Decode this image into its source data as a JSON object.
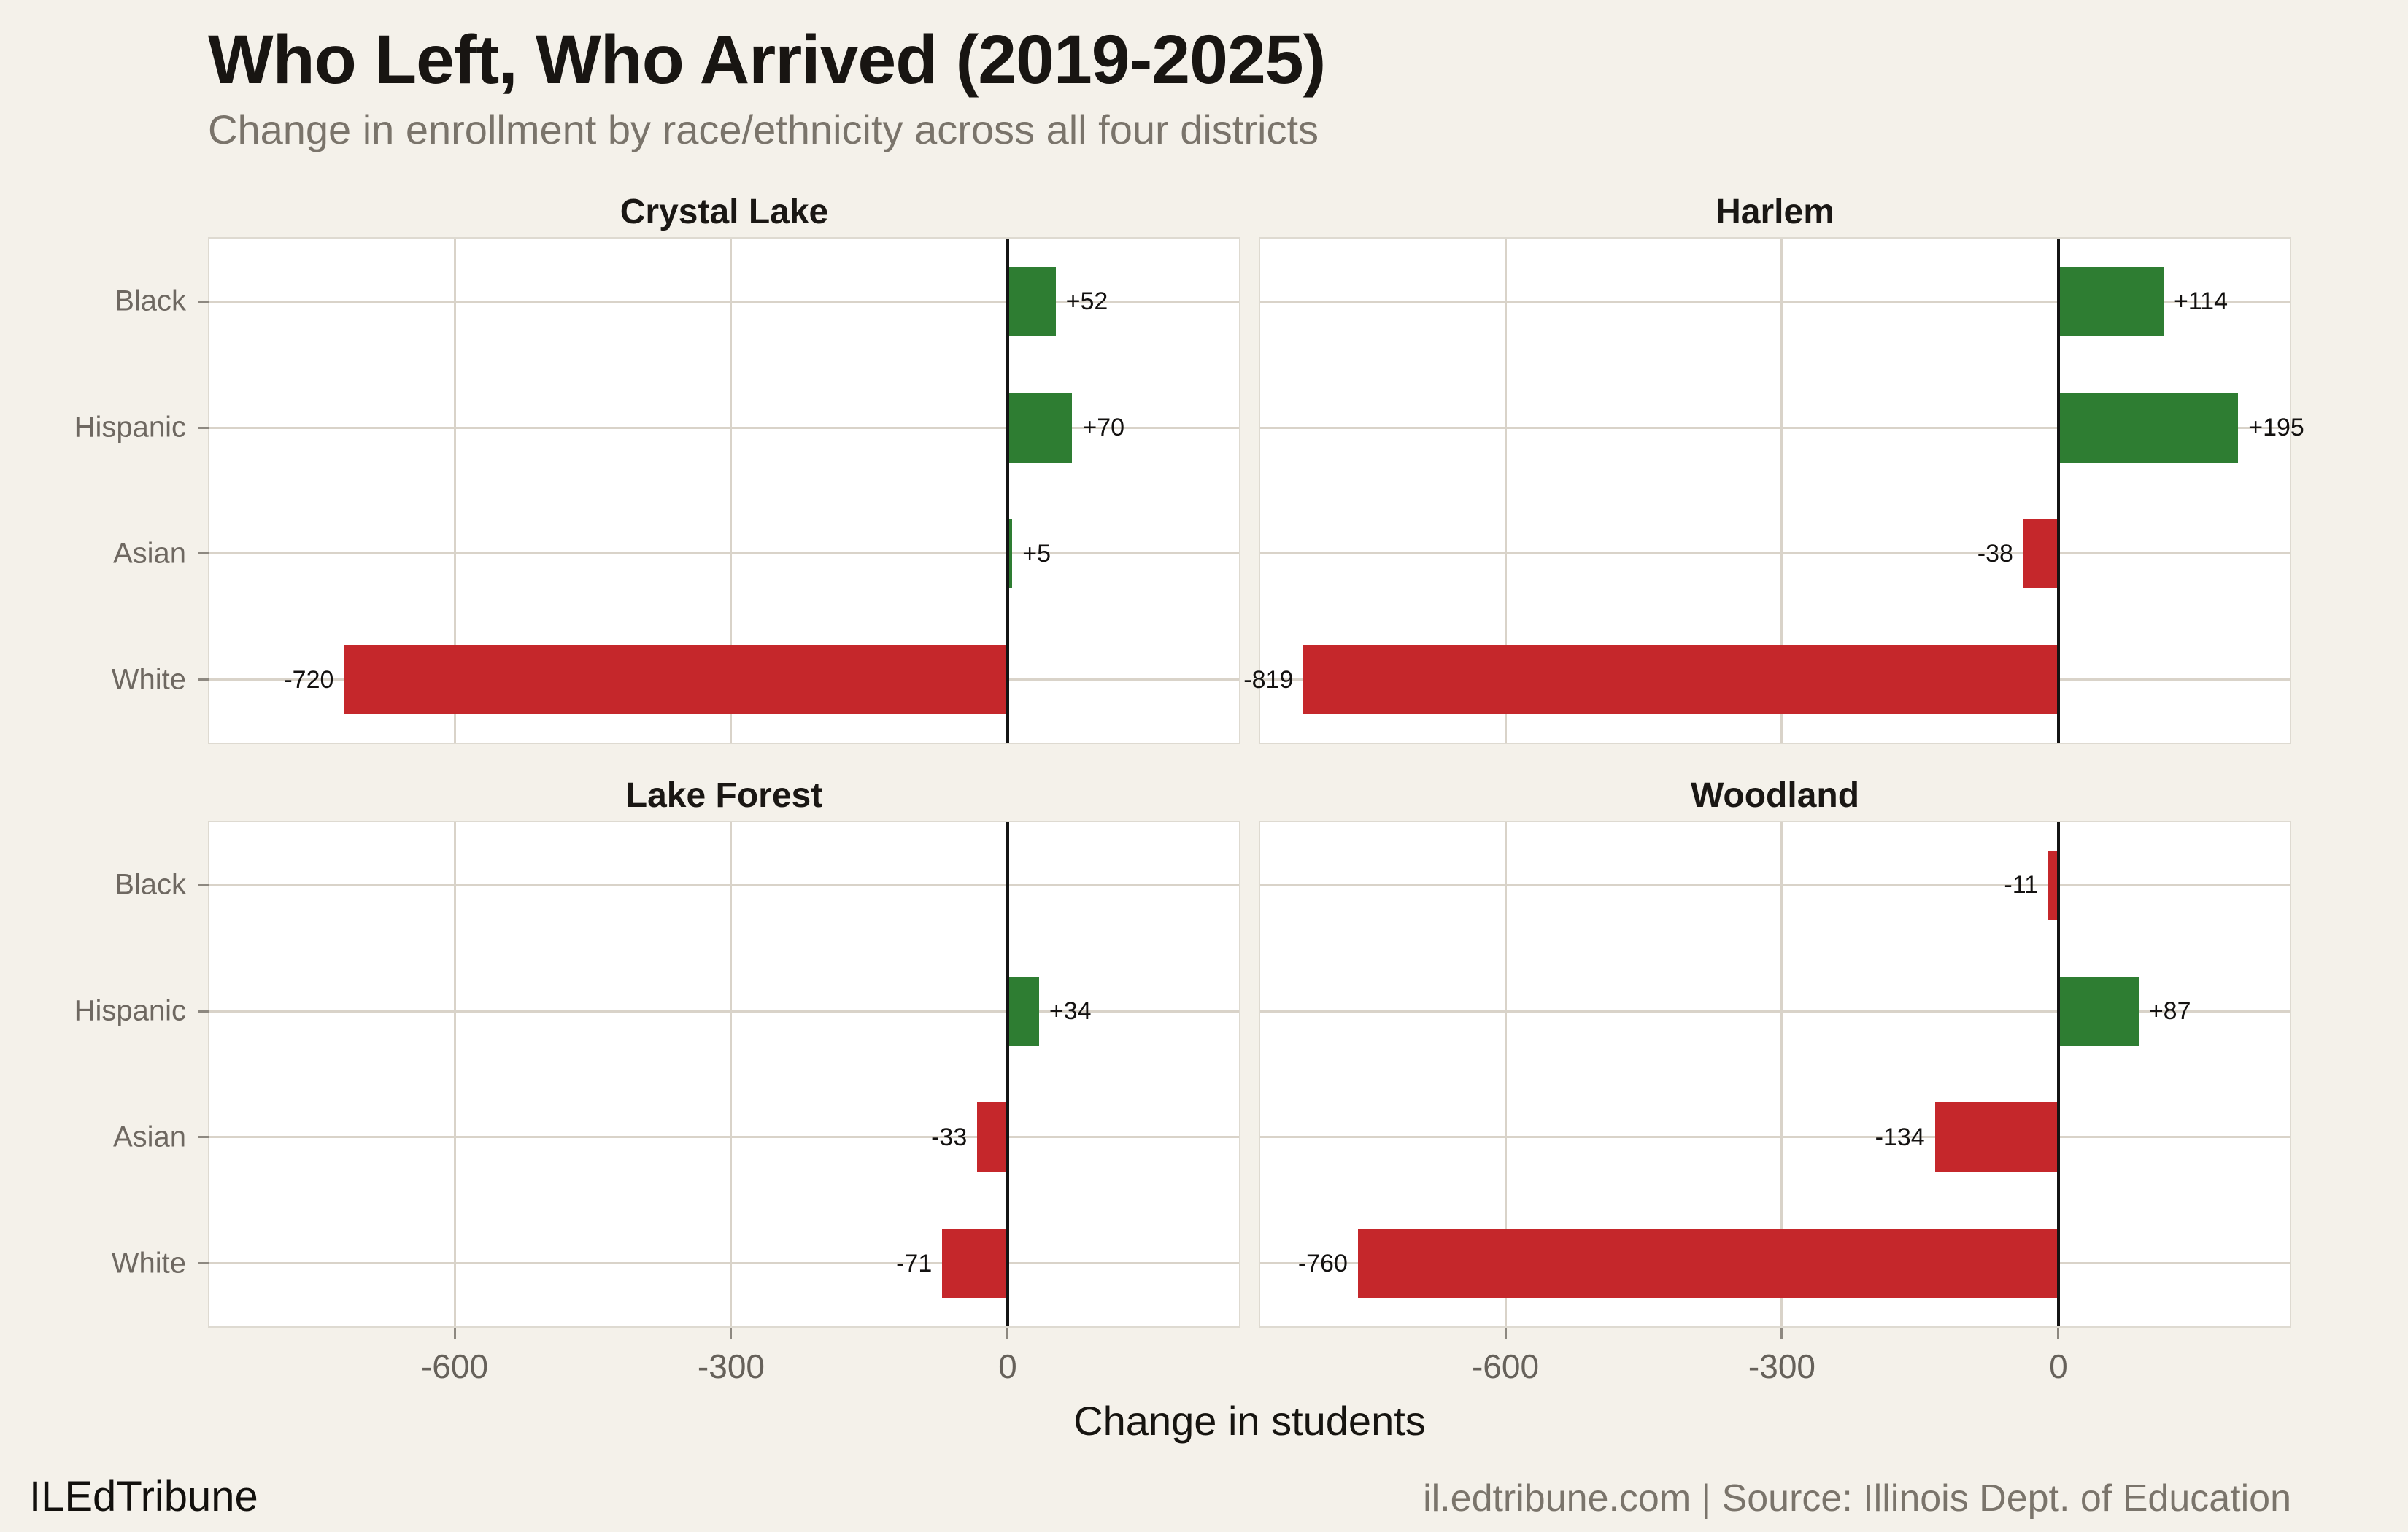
{
  "header": {
    "title": "Who Left, Who Arrived (2019-2025)",
    "subtitle": "Change in enrollment by race/ethnicity across all four districts"
  },
  "footer": {
    "brand": "ILEdTribune",
    "source": "il.edtribune.com | Source: Illinois Dept. of Education"
  },
  "chart_data": {
    "type": "bar",
    "orientation": "horizontal",
    "title": "Who Left, Who Arrived (2019-2025)",
    "subtitle": "Change in enrollment by race/ethnicity across all four districts",
    "categories": [
      "Black",
      "Hispanic",
      "Asian",
      "White"
    ],
    "facets": [
      {
        "title": "Crystal Lake",
        "values": [
          52,
          70,
          5,
          -720
        ],
        "labels": [
          "+52",
          "+70",
          "+5",
          "-720"
        ]
      },
      {
        "title": "Harlem",
        "values": [
          114,
          195,
          -38,
          -819
        ],
        "labels": [
          "+114",
          "+195",
          "-38",
          "-819"
        ]
      },
      {
        "title": "Lake Forest",
        "values": [
          0,
          34,
          -33,
          -71
        ],
        "labels": [
          null,
          "+34",
          "-33",
          "-71"
        ]
      },
      {
        "title": "Woodland",
        "values": [
          -11,
          87,
          -134,
          -760
        ],
        "labels": [
          "-11",
          "+87",
          "-134",
          "-760"
        ]
      }
    ],
    "xlabel": "Change in students",
    "x_ticks": [
      -600,
      -300,
      0
    ],
    "x_tick_labels": [
      "-600",
      "-300",
      "0"
    ],
    "xlim": [
      -866,
      251
    ],
    "grid": true,
    "legend": false,
    "bar_value_labels": true,
    "colors": {
      "positive": "#2e7d32",
      "negative": "#c5272b",
      "zero_line": "#141414",
      "gridline": "#d9d3c9",
      "panel_bg": "#ffffff",
      "page_bg": "#f4f1ea"
    }
  }
}
